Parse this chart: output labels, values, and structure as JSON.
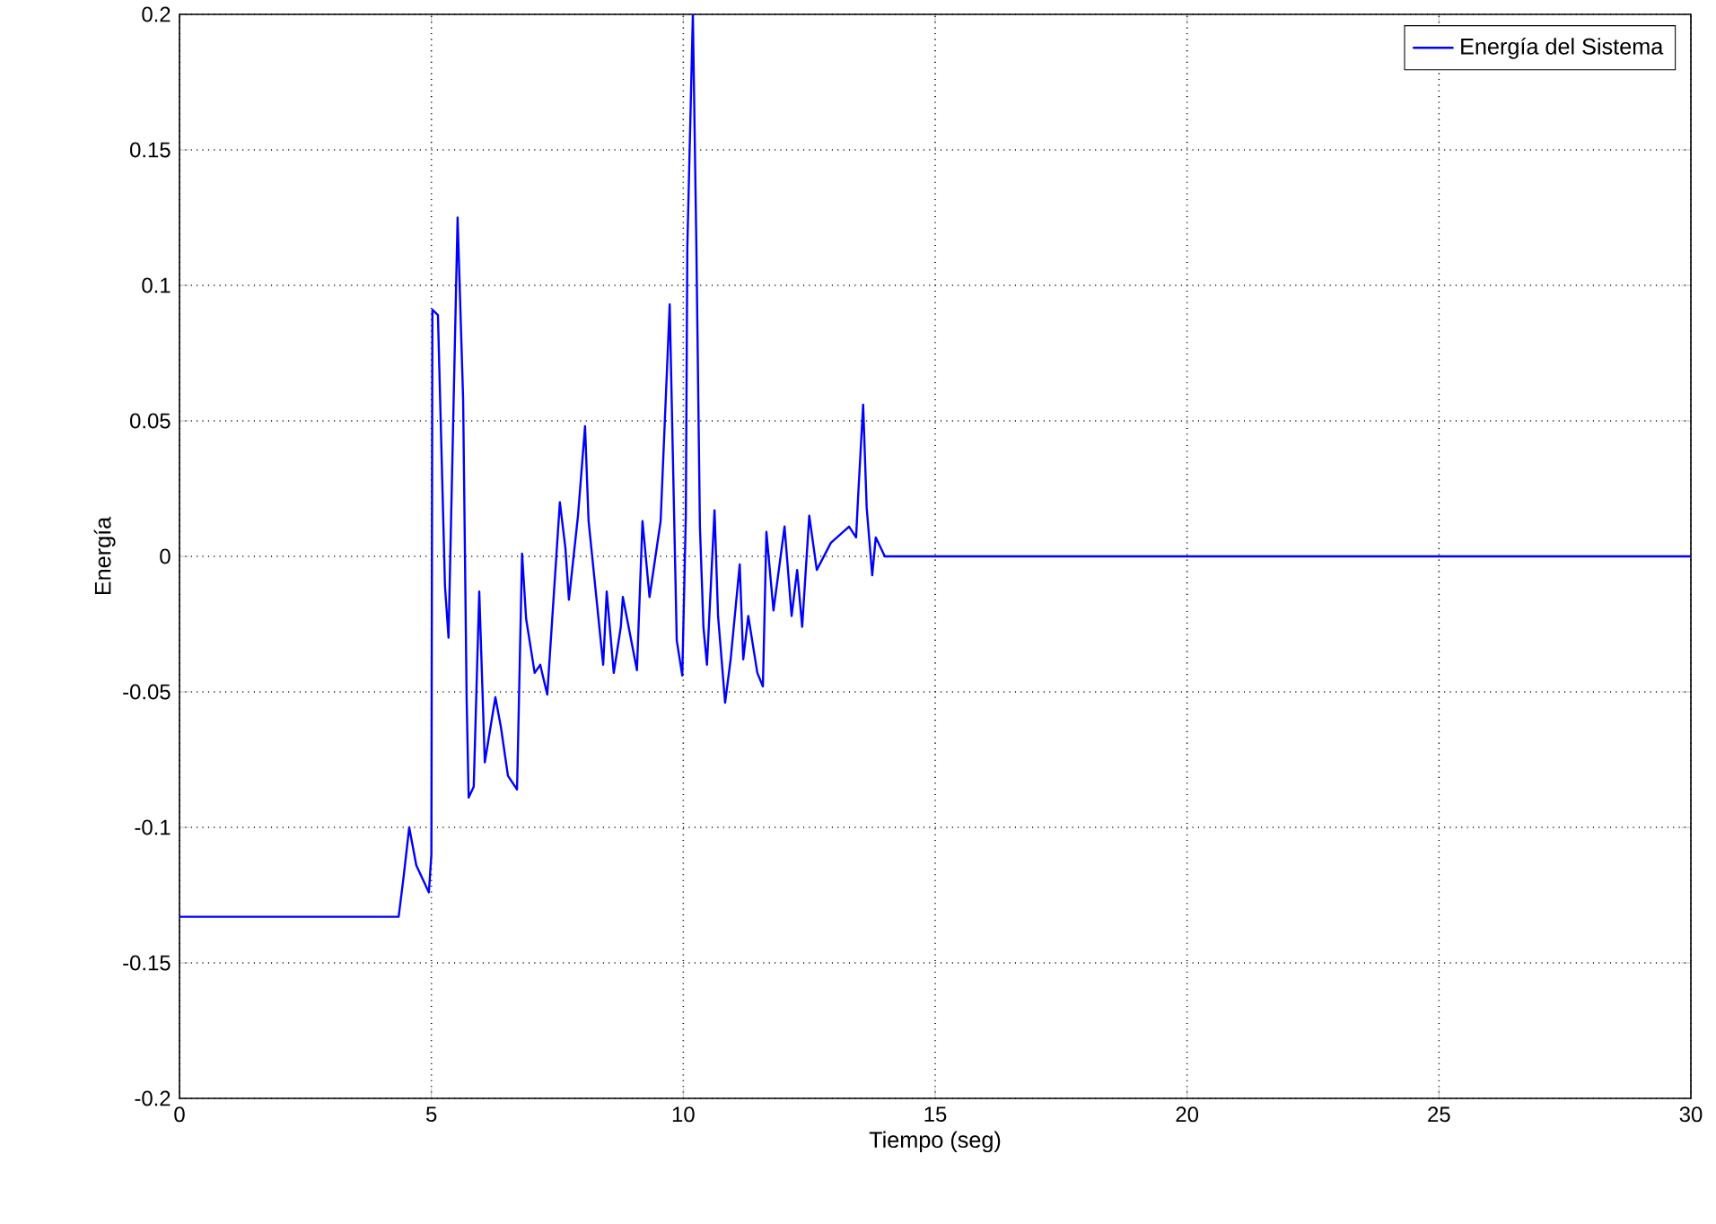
{
  "chart_data": {
    "type": "line",
    "xlabel": "Tiempo (seg)",
    "ylabel": "Energía",
    "x": [
      0,
      4.35,
      4.45,
      4.56,
      4.7,
      4.95,
      5.0,
      5.02,
      5.13,
      5.27,
      5.34,
      5.52,
      5.63,
      5.7,
      5.74,
      5.84,
      5.95,
      6.06,
      6.27,
      6.38,
      6.52,
      6.7,
      6.8,
      6.88,
      7.05,
      7.16,
      7.3,
      7.55,
      7.66,
      7.73,
      7.91,
      8.05,
      8.12,
      8.23,
      8.41,
      8.48,
      8.62,
      8.76,
      8.8,
      9.08,
      9.19,
      9.33,
      9.55,
      9.69,
      9.73,
      9.87,
      9.98,
      10.05,
      10.08,
      10.19,
      10.26,
      10.33,
      10.4,
      10.47,
      10.62,
      10.69,
      10.83,
      10.94,
      11.12,
      11.19,
      11.29,
      11.47,
      11.58,
      11.65,
      11.79,
      12.01,
      12.15,
      12.26,
      12.36,
      12.5,
      12.65,
      12.93,
      13.29,
      13.43,
      13.47,
      13.57,
      13.64,
      13.75,
      13.82,
      14.0,
      14.25,
      30
    ],
    "series": [
      {
        "name": "Energía del Sistema",
        "color": "#0000ff",
        "values": [
          -0.133,
          -0.133,
          -0.118,
          -0.1,
          -0.114,
          -0.124,
          -0.11,
          0.091,
          0.089,
          -0.011,
          -0.03,
          0.125,
          0.058,
          -0.053,
          -0.089,
          -0.085,
          -0.013,
          -0.076,
          -0.052,
          -0.063,
          -0.081,
          -0.086,
          0.001,
          -0.023,
          -0.043,
          -0.04,
          -0.051,
          0.02,
          0.003,
          -0.016,
          0.015,
          0.048,
          0.013,
          -0.007,
          -0.04,
          -0.013,
          -0.043,
          -0.026,
          -0.015,
          -0.042,
          0.013,
          -0.015,
          0.013,
          0.075,
          0.093,
          -0.031,
          -0.044,
          0.015,
          0.114,
          0.2,
          0.114,
          0.011,
          -0.026,
          -0.04,
          0.017,
          -0.022,
          -0.054,
          -0.038,
          -0.003,
          -0.038,
          -0.022,
          -0.043,
          -0.048,
          0.009,
          -0.02,
          0.011,
          -0.022,
          -0.005,
          -0.026,
          0.015,
          -0.005,
          0.005,
          0.011,
          0.007,
          0.022,
          0.056,
          0.018,
          -0.007,
          0.007,
          0,
          0,
          0
        ]
      }
    ],
    "xlim": [
      0,
      30
    ],
    "ylim": [
      -0.2,
      0.2
    ],
    "xticks": [
      0,
      5,
      10,
      15,
      20,
      25,
      30
    ],
    "yticks": [
      -0.2,
      -0.15,
      -0.1,
      -0.05,
      0,
      0.05,
      0.1,
      0.15,
      0.2
    ],
    "grid": true,
    "legend": "top right",
    "line_style": "solid"
  }
}
